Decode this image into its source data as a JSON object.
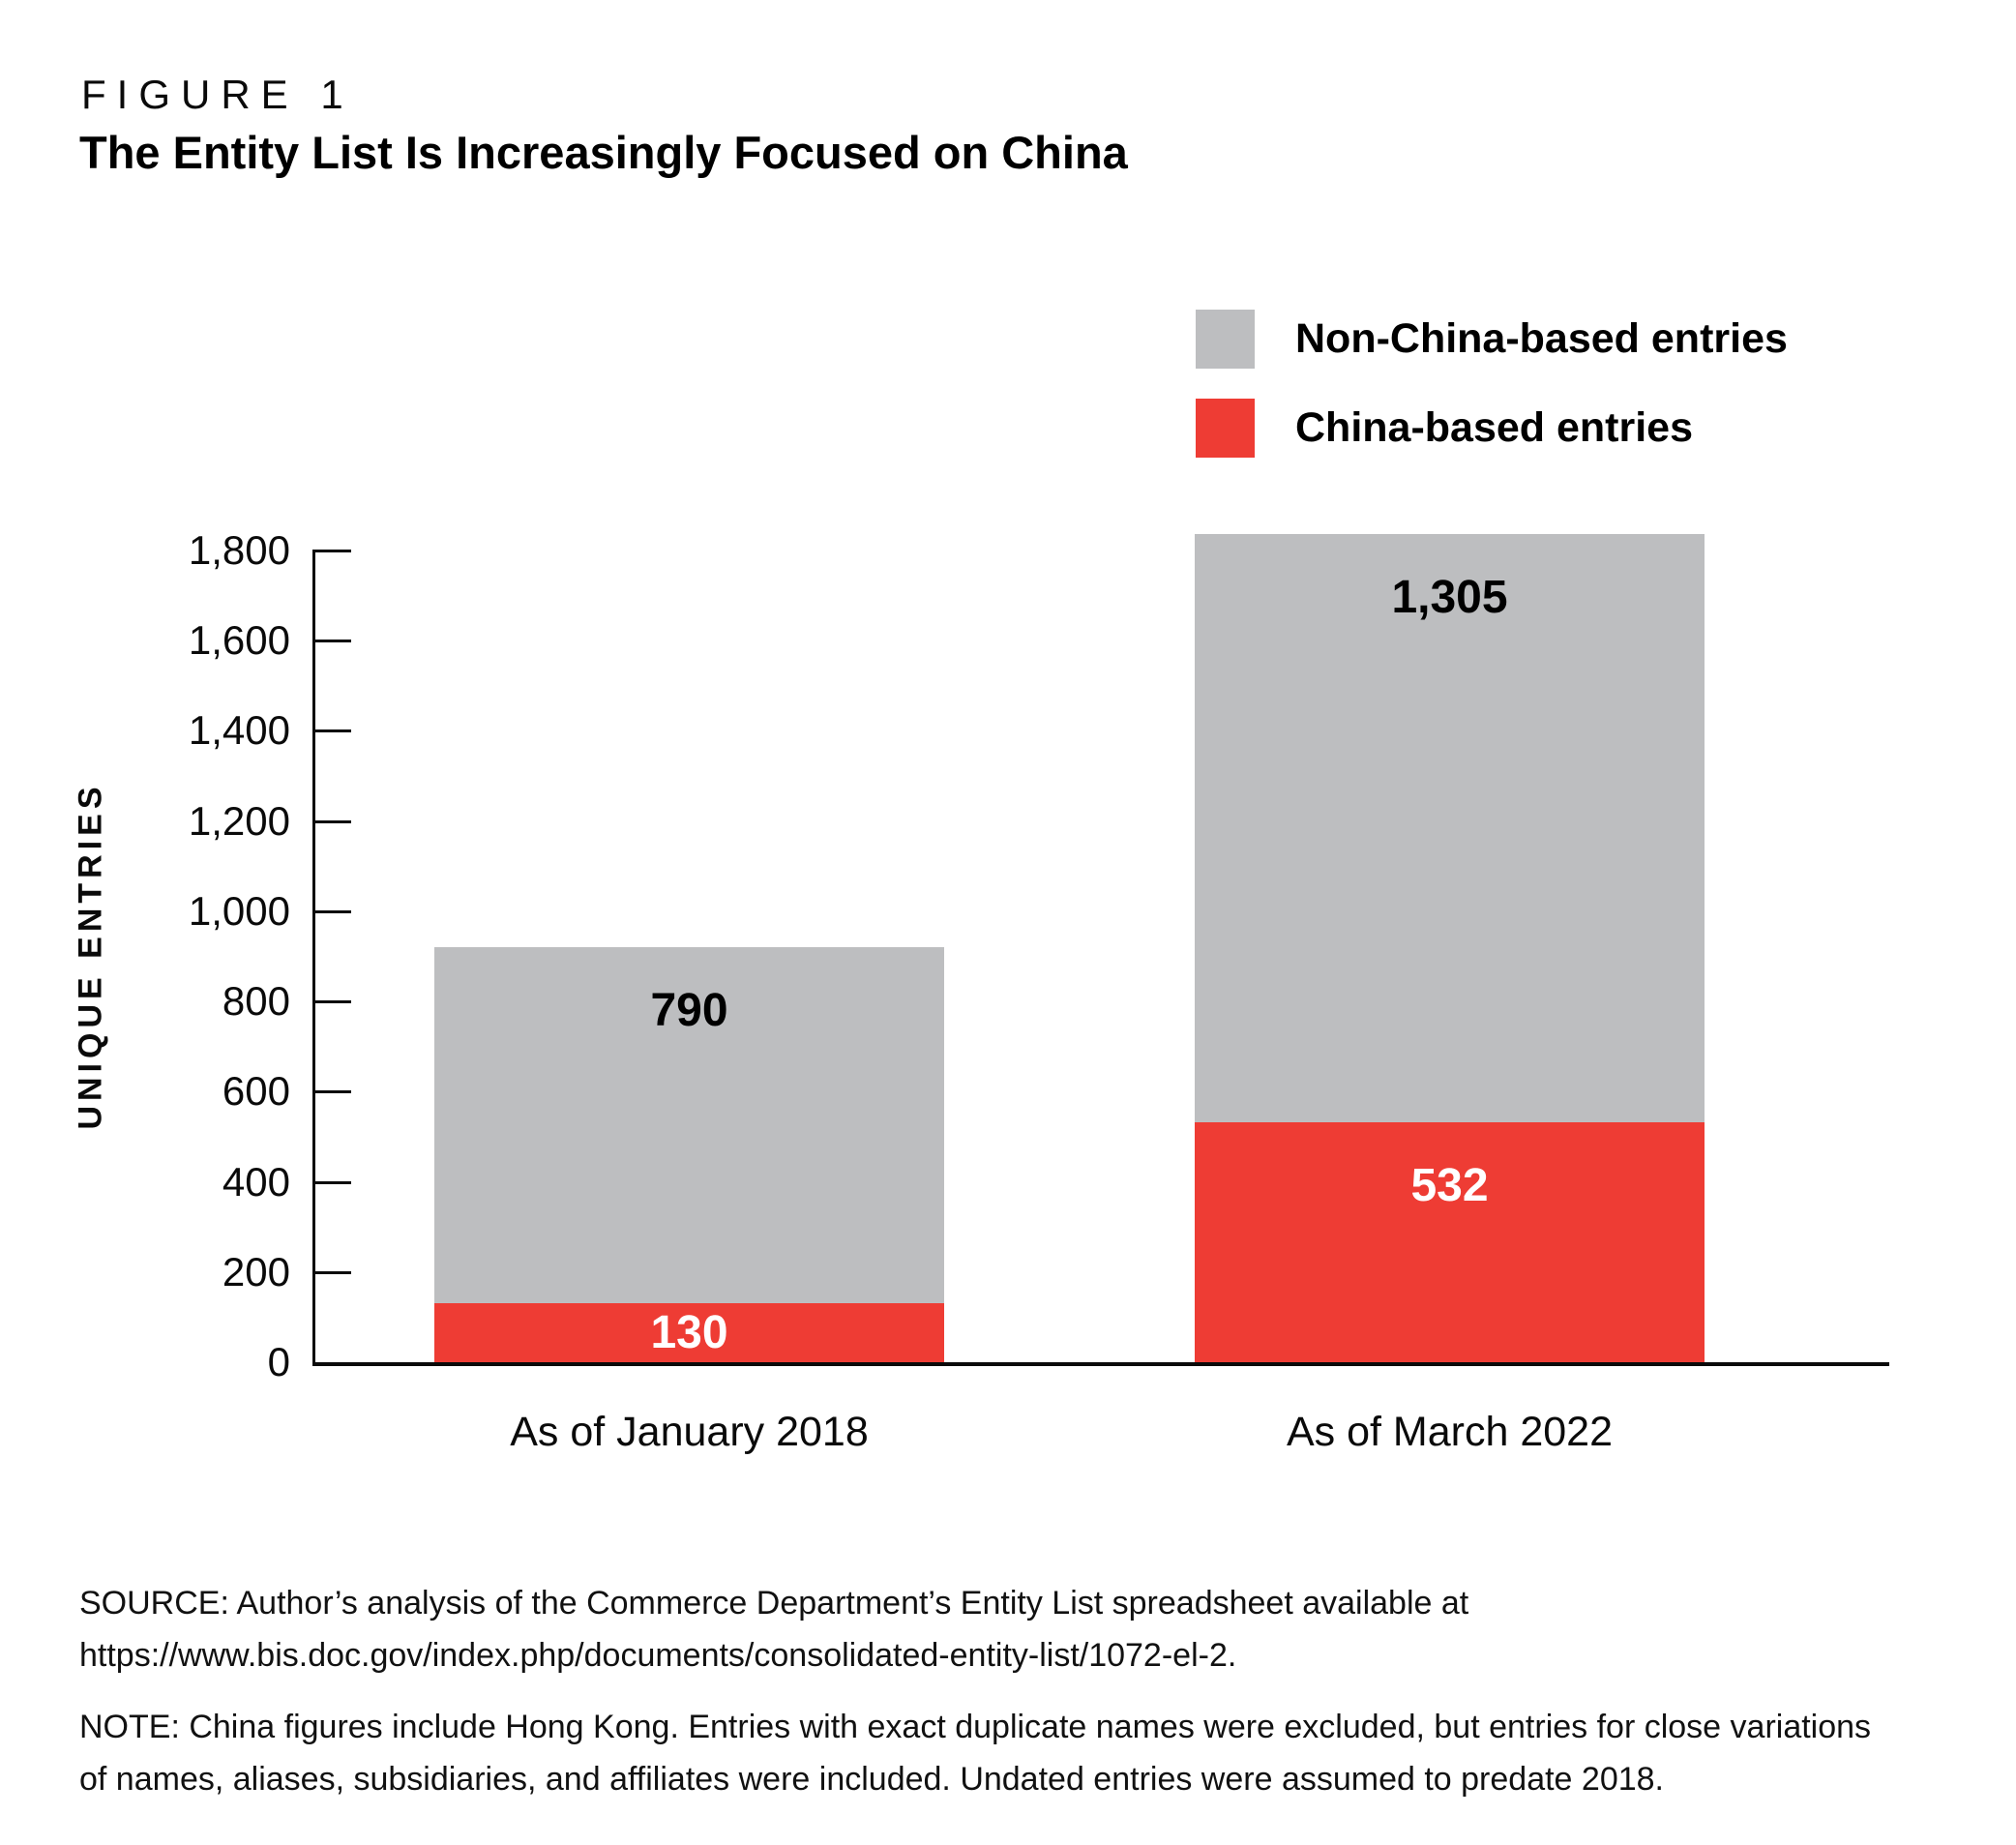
{
  "figure_label": "FIGURE 1",
  "title": "The Entity List Is Increasingly Focused on China",
  "chart_data": {
    "type": "bar",
    "stacked": true,
    "stack_order": "bottom-to-top",
    "title": "The Entity List Is Increasingly Focused on China",
    "categories": [
      "As of January 2018",
      "As of March 2022"
    ],
    "series": [
      {
        "name": "China-based entries",
        "color": "#ee3c34",
        "label_color": "#ffffff",
        "values": [
          130,
          532
        ]
      },
      {
        "name": "Non-China-based entries",
        "color": "#bdbec0",
        "label_color": "#000000",
        "values": [
          790,
          1305
        ]
      }
    ],
    "totals": [
      920,
      1837
    ],
    "xlabel": "",
    "ylabel": "UNIQUE ENTRIES",
    "ylim": [
      0,
      1800
    ],
    "ytick_step": 200,
    "grid": false,
    "legend_position": "top-right"
  },
  "source": {
    "line1": "SOURCE: Author’s analysis of the Commerce Department’s Entity List spreadsheet available at",
    "line2": "https://www.bis.doc.gov/index.php/documents/consolidated-entity-list/1072-el-2."
  },
  "note": {
    "line1": "NOTE: China figures include Hong Kong. Entries with exact duplicate names were excluded, but entries for close variations",
    "line2": "of names, aliases, subsidiaries, and affiliates were included. Undated entries were assumed to predate 2018."
  }
}
